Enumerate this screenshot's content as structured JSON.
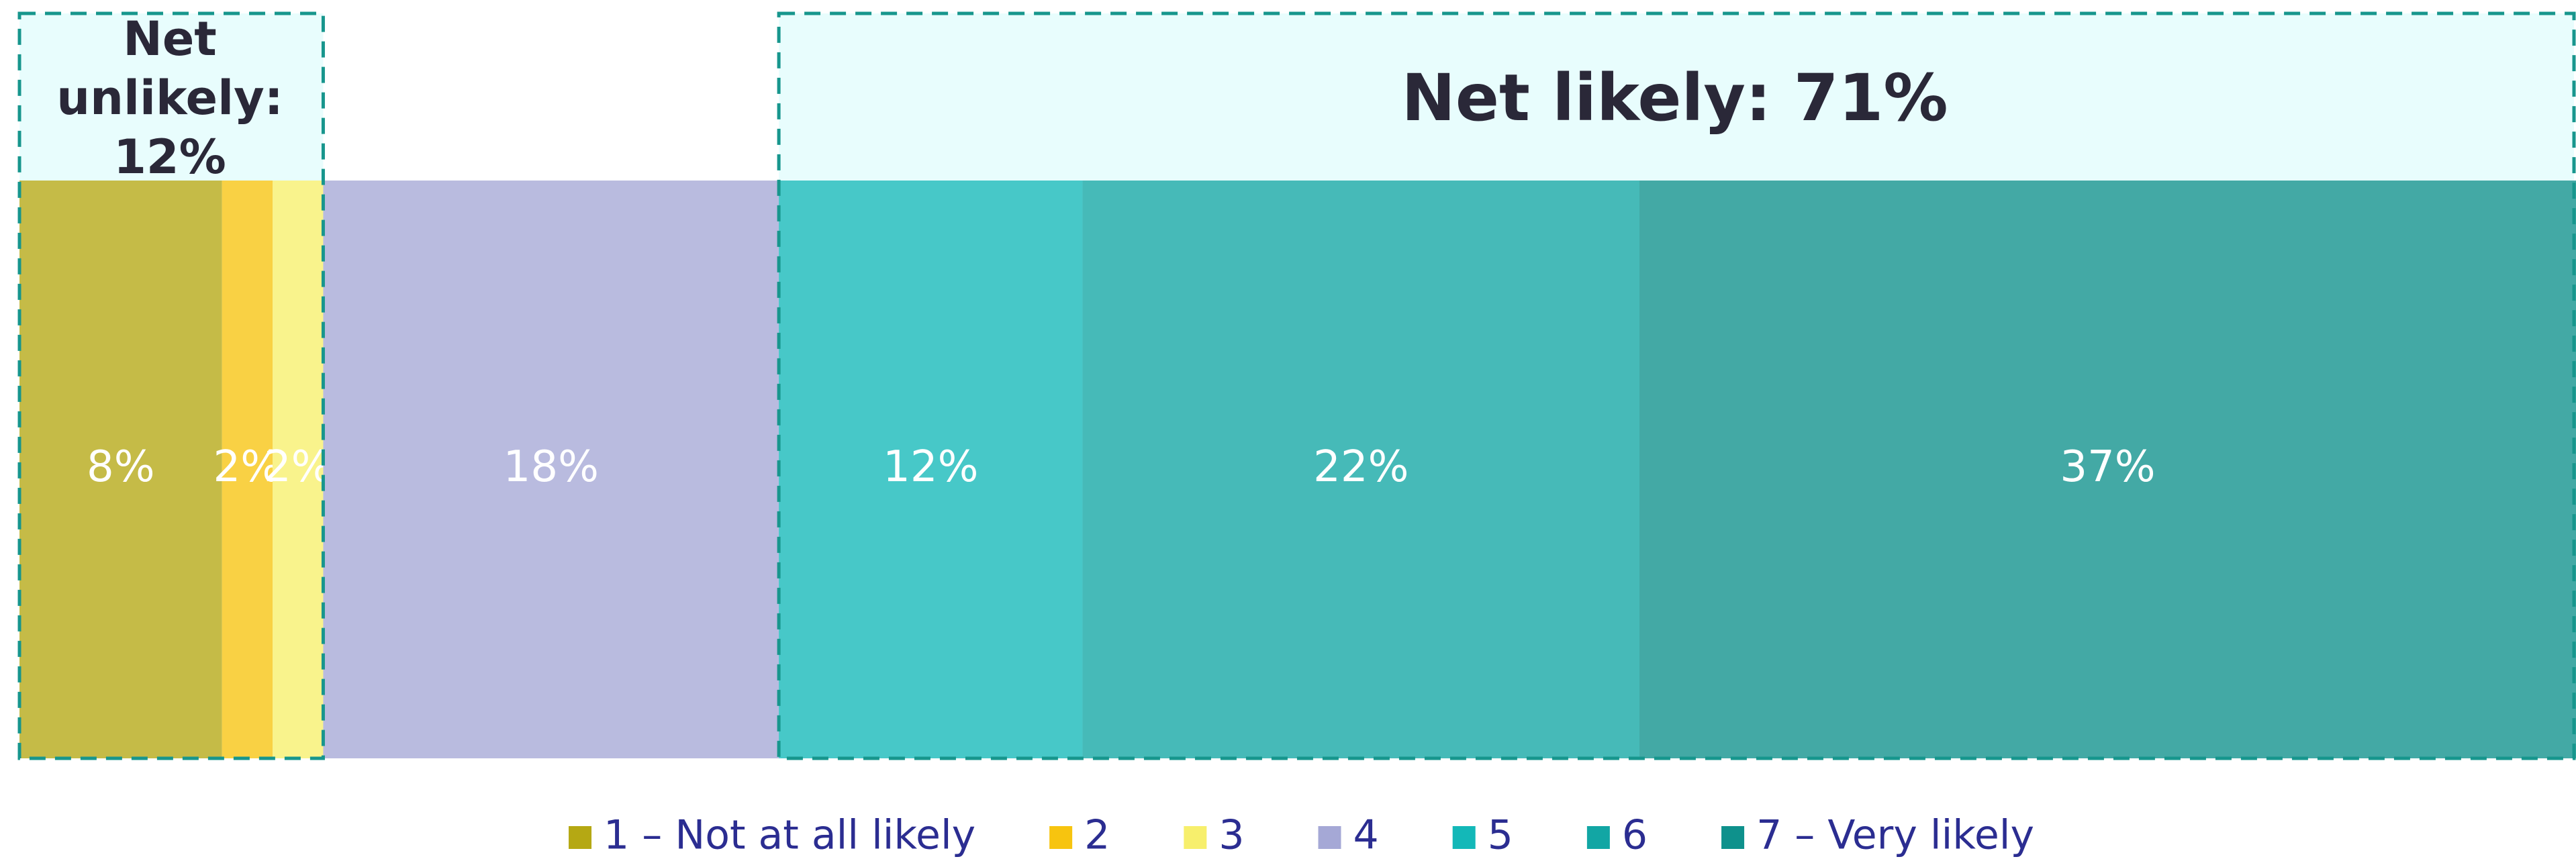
{
  "chart_data": {
    "type": "bar",
    "orientation": "horizontal",
    "stacked": true,
    "series": [
      {
        "name": "1 – Not at all likely",
        "color": "#b5a813",
        "values": [
          8
        ],
        "value_labels": [
          "8%"
        ]
      },
      {
        "name": "2",
        "color": "#f7c40f",
        "values": [
          2
        ],
        "value_labels": [
          "2%"
        ]
      },
      {
        "name": "3",
        "color": "#f7ef6c",
        "values": [
          2
        ],
        "value_labels": [
          "2%"
        ]
      },
      {
        "name": "4",
        "color": "#a5a8d6",
        "values": [
          18
        ],
        "value_labels": [
          "18%"
        ]
      },
      {
        "name": "5",
        "color": "#13b8b8",
        "values": [
          12
        ],
        "value_labels": [
          "12%"
        ]
      },
      {
        "name": "6",
        "color": "#12a6a4",
        "values": [
          22
        ],
        "value_labels": [
          "22%"
        ]
      },
      {
        "name": "7 – Very likely",
        "color": "#0e918c",
        "values": [
          37
        ],
        "value_labels": [
          "37%"
        ]
      }
    ],
    "annotations": [
      {
        "text": "Net unlikely: 12%"
      },
      {
        "text": "Net likely: 71%"
      }
    ],
    "legend": "bottom"
  }
}
